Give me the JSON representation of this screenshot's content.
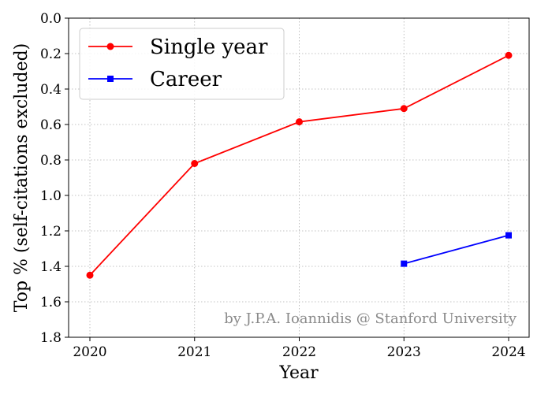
{
  "chart_data": {
    "type": "line",
    "title": "",
    "xlabel": "Year",
    "ylabel": "Top % (self-citations excluded)",
    "x": [
      2020,
      2021,
      2022,
      2023,
      2024
    ],
    "x_tick_labels": [
      "2020",
      "2021",
      "2022",
      "2023",
      "2024"
    ],
    "y_tick_labels": [
      "0.0",
      "0.2",
      "0.4",
      "0.6",
      "0.8",
      "1.0",
      "1.2",
      "1.4",
      "1.6",
      "1.8"
    ],
    "ylim": [
      0.0,
      1.8
    ],
    "y_inverted": true,
    "grid": true,
    "legend_position": "top-left",
    "series": [
      {
        "name": "Single year",
        "color": "#ff0000",
        "marker": "circle",
        "x": [
          2020,
          2021,
          2022,
          2023,
          2024
        ],
        "values": [
          1.45,
          0.82,
          0.585,
          0.51,
          0.21
        ]
      },
      {
        "name": "Career",
        "color": "#0000ff",
        "marker": "square",
        "x": [
          2023,
          2024
        ],
        "values": [
          1.385,
          1.225
        ]
      }
    ],
    "annotation": "by J.P.A. Ioannidis @ Stanford University"
  }
}
